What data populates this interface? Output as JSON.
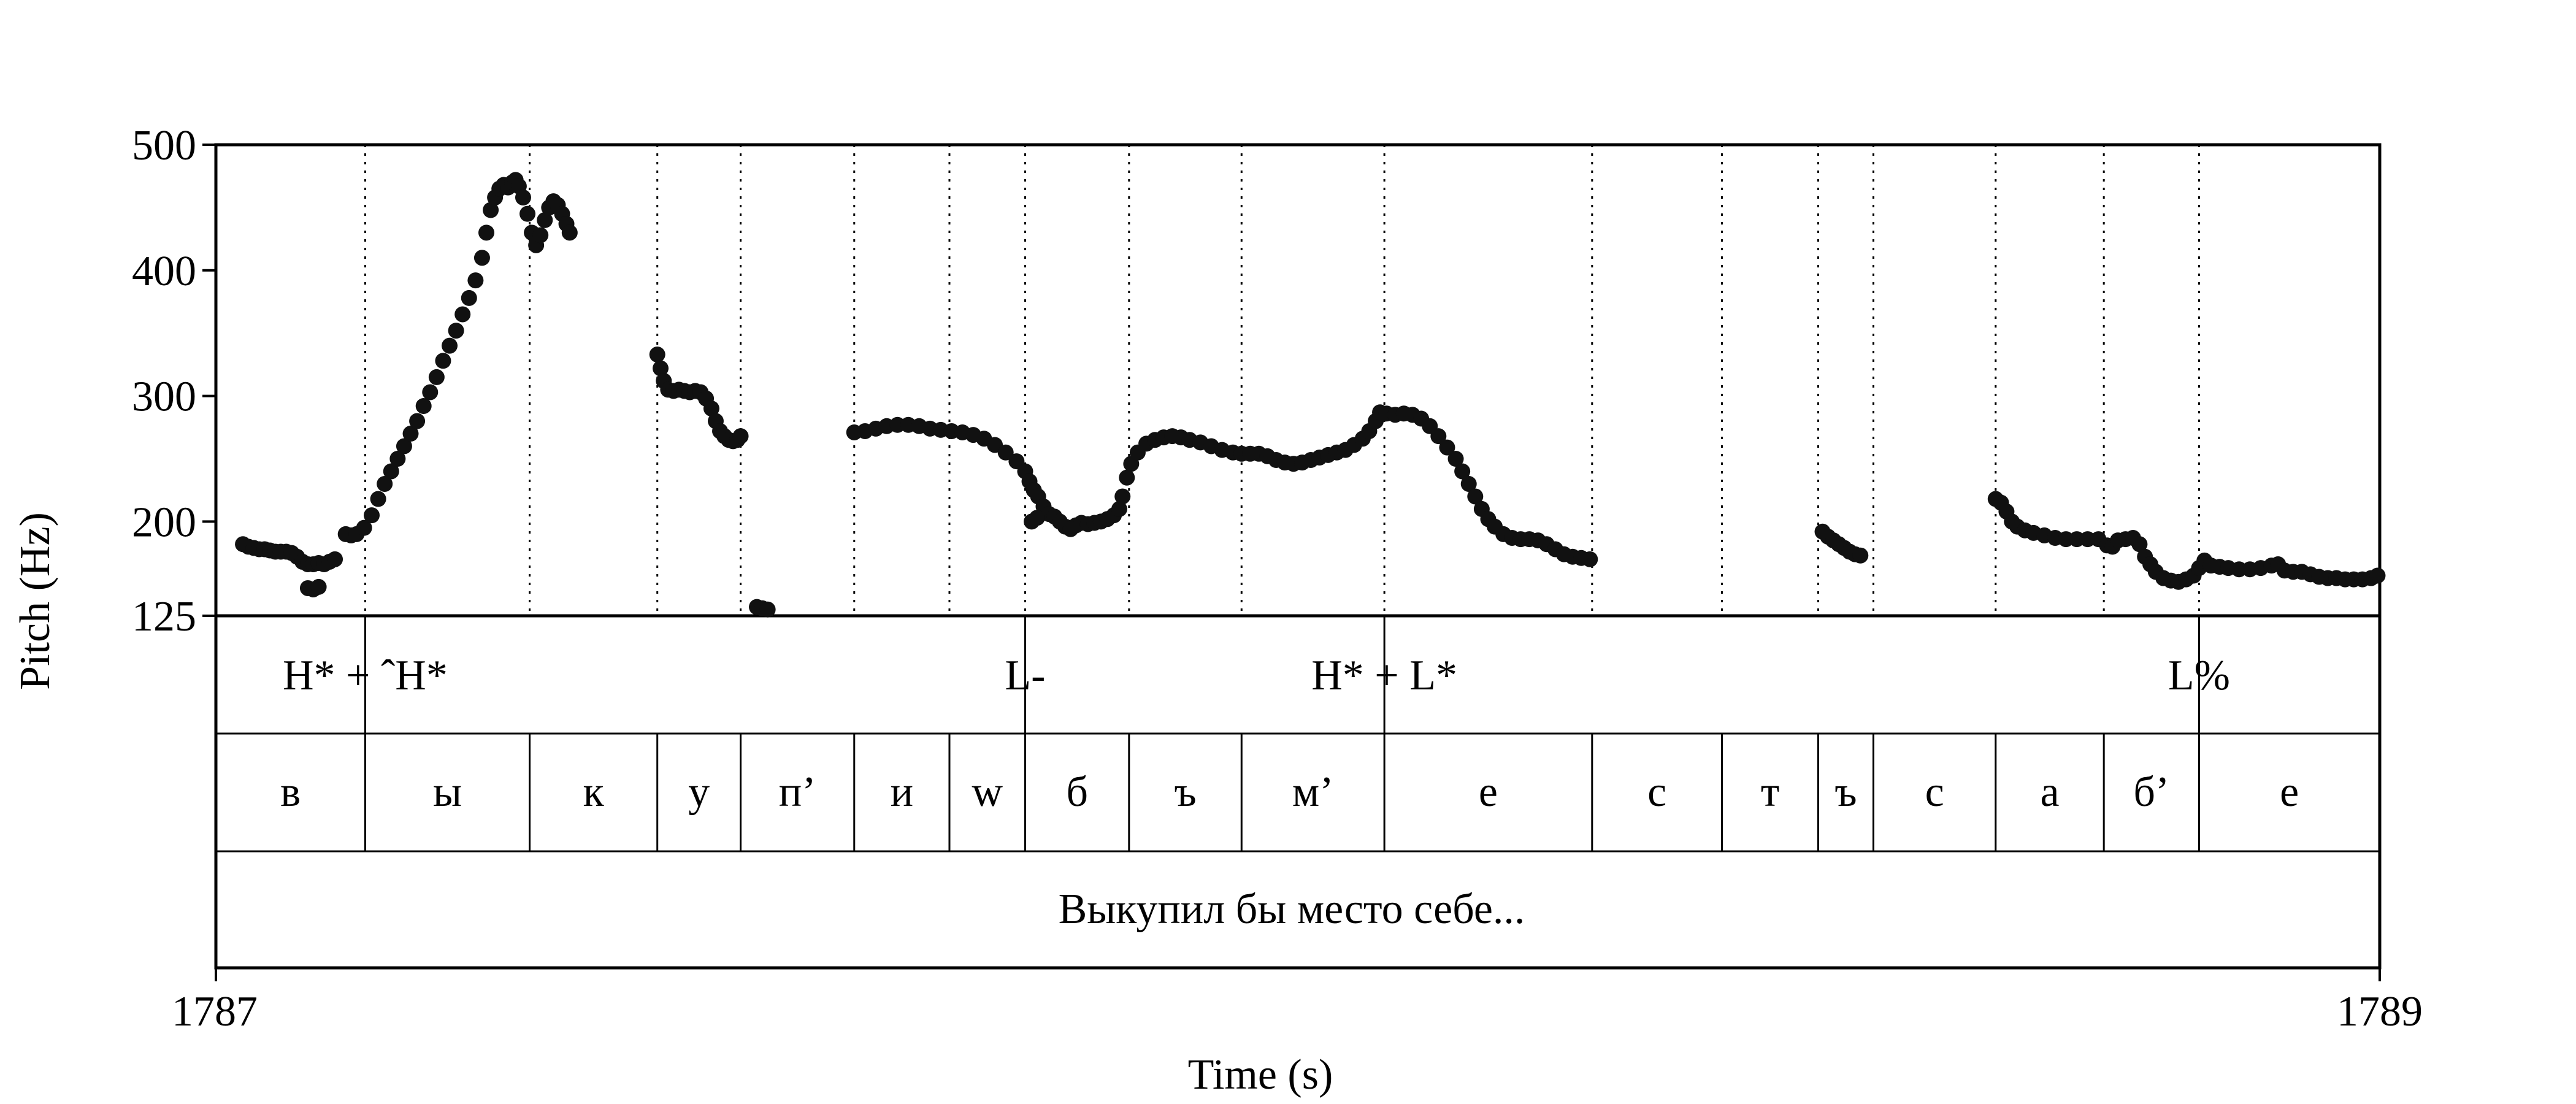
{
  "chart_data": {
    "type": "scatter",
    "ylabel": "Pitch (Hz)",
    "xlabel": "Time (s)",
    "xlim": [
      1787,
      1789
    ],
    "ylim": [
      125,
      500
    ],
    "x_tick_labels": [
      "1787",
      "1789"
    ],
    "y_ticks": [
      {
        "value": 500,
        "label": "500"
      },
      {
        "value": 400,
        "label": "400"
      },
      {
        "value": 300,
        "label": "300"
      },
      {
        "value": 200,
        "label": "200"
      },
      {
        "value": 125,
        "label": "125"
      }
    ],
    "boundaries": [
      1787.138,
      1787.29,
      1787.408,
      1787.485,
      1787.59,
      1787.678,
      1787.748,
      1787.844,
      1787.948,
      1788.08,
      1788.272,
      1788.392,
      1788.481,
      1788.532,
      1788.645,
      1788.745,
      1788.833
    ],
    "tones": [
      {
        "time": 1787.138,
        "label": "H* + ˆH*"
      },
      {
        "time": 1787.748,
        "label": "L-"
      },
      {
        "time": 1788.08,
        "label": "H* + L*"
      },
      {
        "time": 1788.833,
        "label": "L%"
      }
    ],
    "segments": [
      {
        "start": 1787.0,
        "end": 1787.138,
        "label": "в"
      },
      {
        "start": 1787.138,
        "end": 1787.29,
        "label": "ы"
      },
      {
        "start": 1787.29,
        "end": 1787.408,
        "label": "к"
      },
      {
        "start": 1787.408,
        "end": 1787.485,
        "label": "у"
      },
      {
        "start": 1787.485,
        "end": 1787.59,
        "label": "п’"
      },
      {
        "start": 1787.59,
        "end": 1787.678,
        "label": "и"
      },
      {
        "start": 1787.678,
        "end": 1787.748,
        "label": "w"
      },
      {
        "start": 1787.748,
        "end": 1787.844,
        "label": "б"
      },
      {
        "start": 1787.844,
        "end": 1787.948,
        "label": "ъ"
      },
      {
        "start": 1787.948,
        "end": 1788.08,
        "label": "м’"
      },
      {
        "start": 1788.08,
        "end": 1788.272,
        "label": "е"
      },
      {
        "start": 1788.272,
        "end": 1788.392,
        "label": "с"
      },
      {
        "start": 1788.392,
        "end": 1788.481,
        "label": "т"
      },
      {
        "start": 1788.481,
        "end": 1788.532,
        "label": "ъ"
      },
      {
        "start": 1788.532,
        "end": 1788.645,
        "label": "с"
      },
      {
        "start": 1788.645,
        "end": 1788.745,
        "label": "а"
      },
      {
        "start": 1788.745,
        "end": 1788.833,
        "label": "б’"
      },
      {
        "start": 1788.833,
        "end": 1789.0,
        "label": "е"
      }
    ],
    "phrase": "Выкупил бы место себе...",
    "pitch_contours": [
      [
        [
          1787.025,
          182
        ],
        [
          1787.03,
          180
        ],
        [
          1787.035,
          179
        ],
        [
          1787.04,
          178
        ],
        [
          1787.045,
          178
        ],
        [
          1787.05,
          177
        ],
        [
          1787.055,
          176
        ],
        [
          1787.06,
          176
        ],
        [
          1787.065,
          176
        ],
        [
          1787.07,
          175
        ],
        [
          1787.075,
          172
        ],
        [
          1787.08,
          168
        ],
        [
          1787.085,
          166
        ],
        [
          1787.09,
          166
        ],
        [
          1787.095,
          167
        ],
        [
          1787.1,
          166
        ],
        [
          1787.105,
          168
        ],
        [
          1787.11,
          170
        ]
      ],
      [
        [
          1787.085,
          147
        ],
        [
          1787.09,
          146
        ],
        [
          1787.095,
          148
        ]
      ],
      [
        [
          1787.12,
          190
        ],
        [
          1787.125,
          189
        ],
        [
          1787.13,
          190
        ],
        [
          1787.137,
          195
        ],
        [
          1787.144,
          205
        ],
        [
          1787.15,
          218
        ],
        [
          1787.156,
          230
        ],
        [
          1787.162,
          240
        ],
        [
          1787.168,
          250
        ],
        [
          1787.174,
          260
        ],
        [
          1787.18,
          270
        ],
        [
          1787.186,
          280
        ],
        [
          1787.192,
          292
        ],
        [
          1787.198,
          303
        ],
        [
          1787.204,
          315
        ],
        [
          1787.21,
          328
        ],
        [
          1787.216,
          340
        ],
        [
          1787.222,
          352
        ],
        [
          1787.228,
          365
        ],
        [
          1787.234,
          378
        ],
        [
          1787.24,
          392
        ],
        [
          1787.246,
          410
        ],
        [
          1787.25,
          430
        ],
        [
          1787.254,
          448
        ],
        [
          1787.258,
          458
        ],
        [
          1787.262,
          465
        ],
        [
          1787.266,
          468
        ],
        [
          1787.27,
          466
        ],
        [
          1787.274,
          470
        ],
        [
          1787.277,
          472
        ],
        [
          1787.28,
          467
        ],
        [
          1787.284,
          458
        ],
        [
          1787.288,
          445
        ],
        [
          1787.292,
          430
        ],
        [
          1787.296,
          420
        ],
        [
          1787.3,
          428
        ],
        [
          1787.304,
          440
        ],
        [
          1787.308,
          450
        ],
        [
          1787.312,
          455
        ],
        [
          1787.316,
          452
        ],
        [
          1787.32,
          445
        ],
        [
          1787.324,
          437
        ],
        [
          1787.327,
          430
        ]
      ],
      [
        [
          1787.408,
          333
        ],
        [
          1787.411,
          322
        ],
        [
          1787.414,
          312
        ],
        [
          1787.418,
          305
        ],
        [
          1787.423,
          304
        ],
        [
          1787.428,
          305
        ],
        [
          1787.433,
          304
        ],
        [
          1787.438,
          303
        ],
        [
          1787.443,
          304
        ],
        [
          1787.448,
          303
        ],
        [
          1787.453,
          298
        ],
        [
          1787.458,
          290
        ],
        [
          1787.462,
          280
        ],
        [
          1787.466,
          272
        ],
        [
          1787.47,
          268
        ],
        [
          1787.474,
          265
        ],
        [
          1787.478,
          264
        ],
        [
          1787.482,
          265
        ],
        [
          1787.485,
          268
        ]
      ],
      [
        [
          1787.5,
          132
        ],
        [
          1787.505,
          131
        ],
        [
          1787.51,
          130
        ]
      ],
      [
        [
          1787.59,
          271
        ],
        [
          1787.6,
          272
        ],
        [
          1787.61,
          274
        ],
        [
          1787.62,
          276
        ],
        [
          1787.63,
          277
        ],
        [
          1787.64,
          277
        ],
        [
          1787.65,
          276
        ],
        [
          1787.66,
          274
        ],
        [
          1787.67,
          273
        ],
        [
          1787.68,
          272
        ],
        [
          1787.69,
          271
        ],
        [
          1787.7,
          269
        ],
        [
          1787.71,
          266
        ],
        [
          1787.72,
          261
        ],
        [
          1787.73,
          255
        ],
        [
          1787.74,
          248
        ],
        [
          1787.748,
          240
        ],
        [
          1787.752,
          232
        ],
        [
          1787.756,
          225
        ],
        [
          1787.76,
          220
        ],
        [
          1787.765,
          212
        ],
        [
          1787.77,
          206
        ],
        [
          1787.775,
          204
        ],
        [
          1787.78,
          200
        ],
        [
          1787.785,
          196
        ],
        [
          1787.79,
          194
        ],
        [
          1787.795,
          197
        ],
        [
          1787.8,
          199
        ],
        [
          1787.806,
          198
        ],
        [
          1787.812,
          199
        ],
        [
          1787.818,
          200
        ],
        [
          1787.824,
          202
        ],
        [
          1787.83,
          205
        ],
        [
          1787.835,
          210
        ],
        [
          1787.838,
          220
        ],
        [
          1787.842,
          235
        ],
        [
          1787.846,
          246
        ],
        [
          1787.852,
          255
        ],
        [
          1787.86,
          262
        ],
        [
          1787.868,
          265
        ],
        [
          1787.876,
          267
        ],
        [
          1787.884,
          268
        ],
        [
          1787.892,
          267
        ],
        [
          1787.9,
          265
        ],
        [
          1787.91,
          263
        ],
        [
          1787.92,
          260
        ],
        [
          1787.93,
          257
        ],
        [
          1787.94,
          255
        ],
        [
          1787.948,
          254
        ],
        [
          1787.956,
          254
        ],
        [
          1787.964,
          254
        ],
        [
          1787.972,
          252
        ],
        [
          1787.98,
          249
        ],
        [
          1787.988,
          247
        ],
        [
          1787.996,
          246
        ],
        [
          1788.004,
          247
        ],
        [
          1788.012,
          249
        ],
        [
          1788.02,
          251
        ],
        [
          1788.028,
          253
        ],
        [
          1788.036,
          255
        ],
        [
          1788.044,
          257
        ],
        [
          1788.052,
          261
        ],
        [
          1788.06,
          266
        ],
        [
          1788.066,
          272
        ],
        [
          1788.072,
          280
        ],
        [
          1788.076,
          287
        ],
        [
          1788.082,
          286
        ],
        [
          1788.09,
          285
        ],
        [
          1788.098,
          286
        ],
        [
          1788.106,
          285
        ],
        [
          1788.114,
          282
        ],
        [
          1788.122,
          276
        ],
        [
          1788.13,
          268
        ],
        [
          1788.138,
          259
        ],
        [
          1788.146,
          250
        ],
        [
          1788.152,
          240
        ],
        [
          1788.158,
          230
        ],
        [
          1788.164,
          220
        ],
        [
          1788.17,
          210
        ],
        [
          1788.176,
          202
        ],
        [
          1788.182,
          196
        ],
        [
          1788.19,
          190
        ],
        [
          1788.198,
          187
        ],
        [
          1788.206,
          186
        ],
        [
          1788.214,
          186
        ],
        [
          1788.222,
          185
        ],
        [
          1788.23,
          182
        ],
        [
          1788.238,
          178
        ],
        [
          1788.246,
          174
        ],
        [
          1788.254,
          172
        ],
        [
          1788.262,
          171
        ],
        [
          1788.27,
          170
        ]
      ],
      [
        [
          1787.754,
          200
        ],
        [
          1787.759,
          203
        ]
      ],
      [
        [
          1788.485,
          192
        ],
        [
          1788.49,
          188
        ],
        [
          1788.495,
          185
        ],
        [
          1788.5,
          182
        ],
        [
          1788.505,
          179
        ],
        [
          1788.51,
          176
        ],
        [
          1788.515,
          174
        ],
        [
          1788.52,
          173
        ]
      ],
      [
        [
          1788.645,
          218
        ],
        [
          1788.65,
          215
        ],
        [
          1788.655,
          208
        ],
        [
          1788.66,
          200
        ],
        [
          1788.665,
          196
        ],
        [
          1788.672,
          193
        ],
        [
          1788.68,
          191
        ],
        [
          1788.69,
          189
        ],
        [
          1788.7,
          187
        ],
        [
          1788.71,
          186
        ],
        [
          1788.72,
          186
        ],
        [
          1788.73,
          186
        ],
        [
          1788.74,
          186
        ],
        [
          1788.748,
          181
        ],
        [
          1788.753,
          180
        ],
        [
          1788.758,
          185
        ],
        [
          1788.765,
          186
        ],
        [
          1788.772,
          187
        ],
        [
          1788.778,
          182
        ],
        [
          1788.783,
          172
        ],
        [
          1788.788,
          166
        ],
        [
          1788.793,
          160
        ],
        [
          1788.8,
          155
        ],
        [
          1788.807,
          153
        ],
        [
          1788.814,
          152
        ],
        [
          1788.821,
          154
        ],
        [
          1788.828,
          157
        ],
        [
          1788.833,
          163
        ],
        [
          1788.838,
          169
        ],
        [
          1788.844,
          165
        ],
        [
          1788.852,
          164
        ],
        [
          1788.86,
          163
        ],
        [
          1788.87,
          162
        ],
        [
          1788.88,
          162
        ],
        [
          1788.89,
          163
        ],
        [
          1788.9,
          165
        ],
        [
          1788.906,
          166
        ],
        [
          1788.912,
          161
        ],
        [
          1788.92,
          160
        ],
        [
          1788.928,
          160
        ],
        [
          1788.936,
          158
        ],
        [
          1788.944,
          156
        ],
        [
          1788.952,
          155
        ],
        [
          1788.96,
          155
        ],
        [
          1788.968,
          154
        ],
        [
          1788.976,
          154
        ],
        [
          1788.984,
          154
        ],
        [
          1788.992,
          155
        ],
        [
          1788.998,
          157
        ]
      ]
    ]
  }
}
